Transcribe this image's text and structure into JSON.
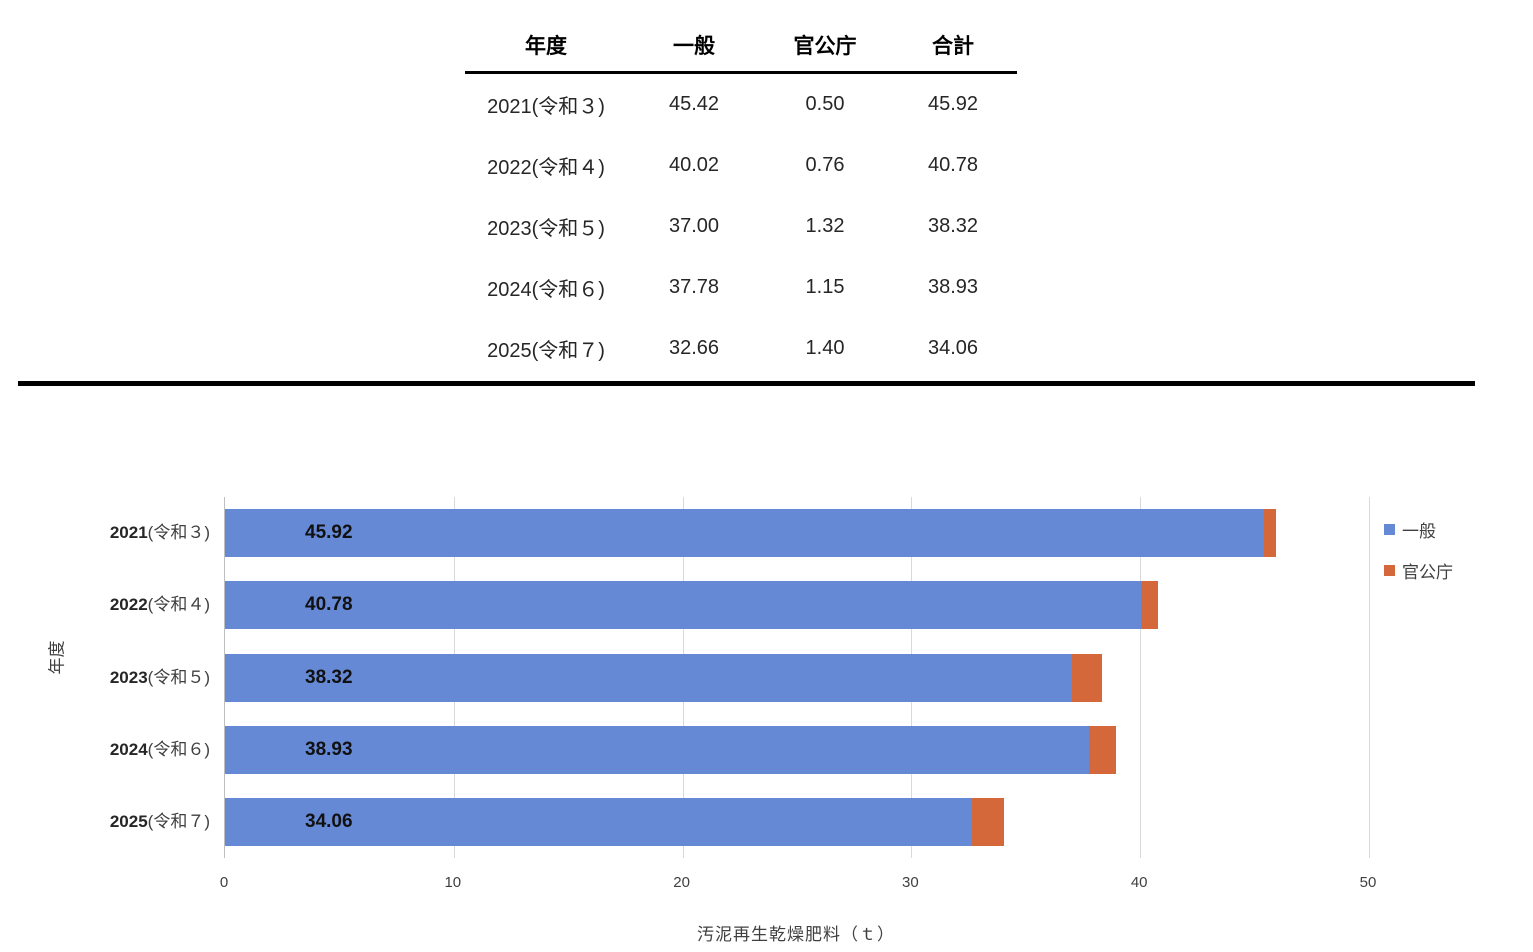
{
  "table": {
    "headers": [
      "年度",
      "一般",
      "官公庁",
      "合計"
    ],
    "rows": [
      {
        "year": "2021(令和３)",
        "general": "45.42",
        "government": "0.50",
        "total": "45.92"
      },
      {
        "year": "2022(令和４)",
        "general": "40.02",
        "government": "0.76",
        "total": "40.78"
      },
      {
        "year": "2023(令和５)",
        "general": "37.00",
        "government": "1.32",
        "total": "38.32"
      },
      {
        "year": "2024(令和６)",
        "general": "37.78",
        "government": "1.15",
        "total": "38.93"
      },
      {
        "year": "2025(令和７)",
        "general": "32.66",
        "government": "1.40",
        "total": "34.06"
      }
    ]
  },
  "chart_data": {
    "type": "bar",
    "orientation": "horizontal",
    "stacked": true,
    "title": "",
    "xlabel": "汚泥再生乾燥肥料（ｔ）",
    "ylabel": "年度",
    "categories": [
      "2021(令和３)",
      "2022(令和４)",
      "2023(令和５)",
      "2024(令和６)",
      "2025(令和７)"
    ],
    "series": [
      {
        "name": "一般",
        "color": "#6689d6",
        "values": [
          45.42,
          40.02,
          37.0,
          37.78,
          32.66
        ]
      },
      {
        "name": "官公庁",
        "color": "#d5683b",
        "values": [
          0.5,
          0.76,
          1.32,
          1.15,
          1.4
        ]
      }
    ],
    "bar_labels": [
      "45.92",
      "40.78",
      "38.32",
      "38.93",
      "34.06"
    ],
    "xlim": [
      0,
      50
    ],
    "xticks": [
      0,
      10,
      20,
      30,
      40,
      50
    ],
    "grid": "vertical",
    "legend_position": "right",
    "colors": {
      "gridline": "#d9d9d9",
      "axis_line": "#bfbfbf",
      "axis_text": "#404040",
      "bar_label_text": "#111111",
      "divider": "#000000"
    }
  }
}
